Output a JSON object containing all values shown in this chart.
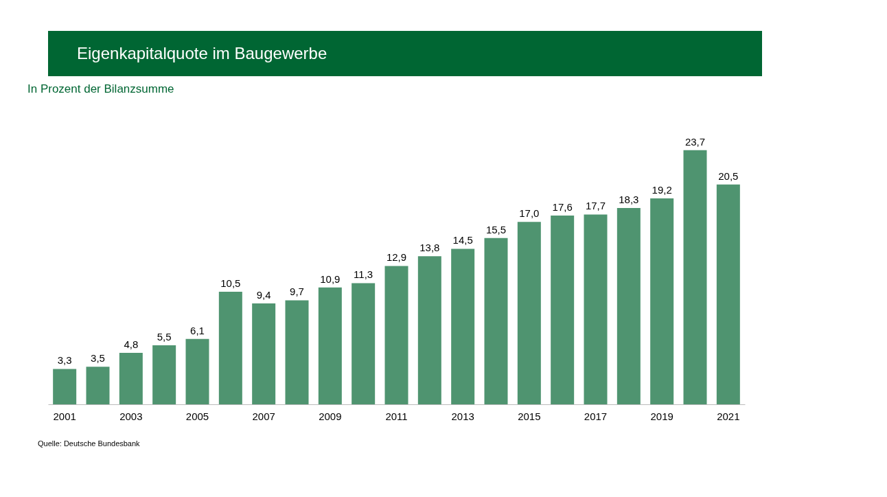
{
  "chart_data": {
    "type": "bar",
    "title": "Eigenkapitalquote im Baugewerbe",
    "subtitle": "In Prozent der Bilanzsumme",
    "categories": [
      "2001",
      null,
      "2003",
      null,
      "2005",
      null,
      "2007",
      null,
      "2009",
      null,
      "2011",
      null,
      "2013",
      null,
      "2015",
      null,
      "2017",
      null,
      "2019",
      null,
      "2021"
    ],
    "values": [
      3.3,
      3.5,
      4.8,
      5.5,
      6.1,
      10.5,
      9.4,
      9.7,
      10.9,
      11.3,
      12.9,
      13.8,
      14.5,
      15.5,
      17.0,
      17.6,
      17.7,
      18.3,
      19.2,
      23.7,
      20.5
    ],
    "value_labels": [
      "3,3",
      "3,5",
      "4,8",
      "5,5",
      "6,1",
      "10,5",
      "9,4",
      "9,7",
      "10,9",
      "11,3",
      "12,9",
      "13,8",
      "14,5",
      "15,5",
      "17,0",
      "17,6",
      "17,7",
      "18,3",
      "19,2",
      "23,7",
      "20,5"
    ],
    "color": "#4f9470",
    "annotations": [
      "Quelle: Deutsche Bundesbank"
    ]
  }
}
